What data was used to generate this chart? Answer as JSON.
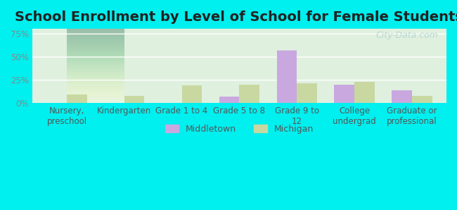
{
  "title": "School Enrollment by Level of School for Female Students",
  "categories": [
    "Nursery,\npreschool",
    "Kindergarten",
    "Grade 1 to 4",
    "Grade 5 to 8",
    "Grade 9 to\n12",
    "College\nundergrad",
    "Graduate or\nprofessional"
  ],
  "middletown": [
    0,
    0,
    0,
    7,
    57,
    20,
    14
  ],
  "michigan": [
    9,
    8,
    19,
    20,
    21,
    23,
    8
  ],
  "middletown_color": "#c9a8e0",
  "michigan_color": "#c8d8a0",
  "background_color": "#00efef",
  "plot_bg_top": "#e8f4e8",
  "plot_bg_bottom": "#f5faf0",
  "bar_width": 0.35,
  "ylim": [
    0,
    80
  ],
  "yticks": [
    0,
    25,
    50,
    75
  ],
  "ytick_labels": [
    "0%",
    "25%",
    "50%",
    "75%"
  ],
  "title_fontsize": 14,
  "tick_fontsize": 8.5,
  "legend_labels": [
    "Middletown",
    "Michigan"
  ],
  "watermark": "City-Data.com"
}
